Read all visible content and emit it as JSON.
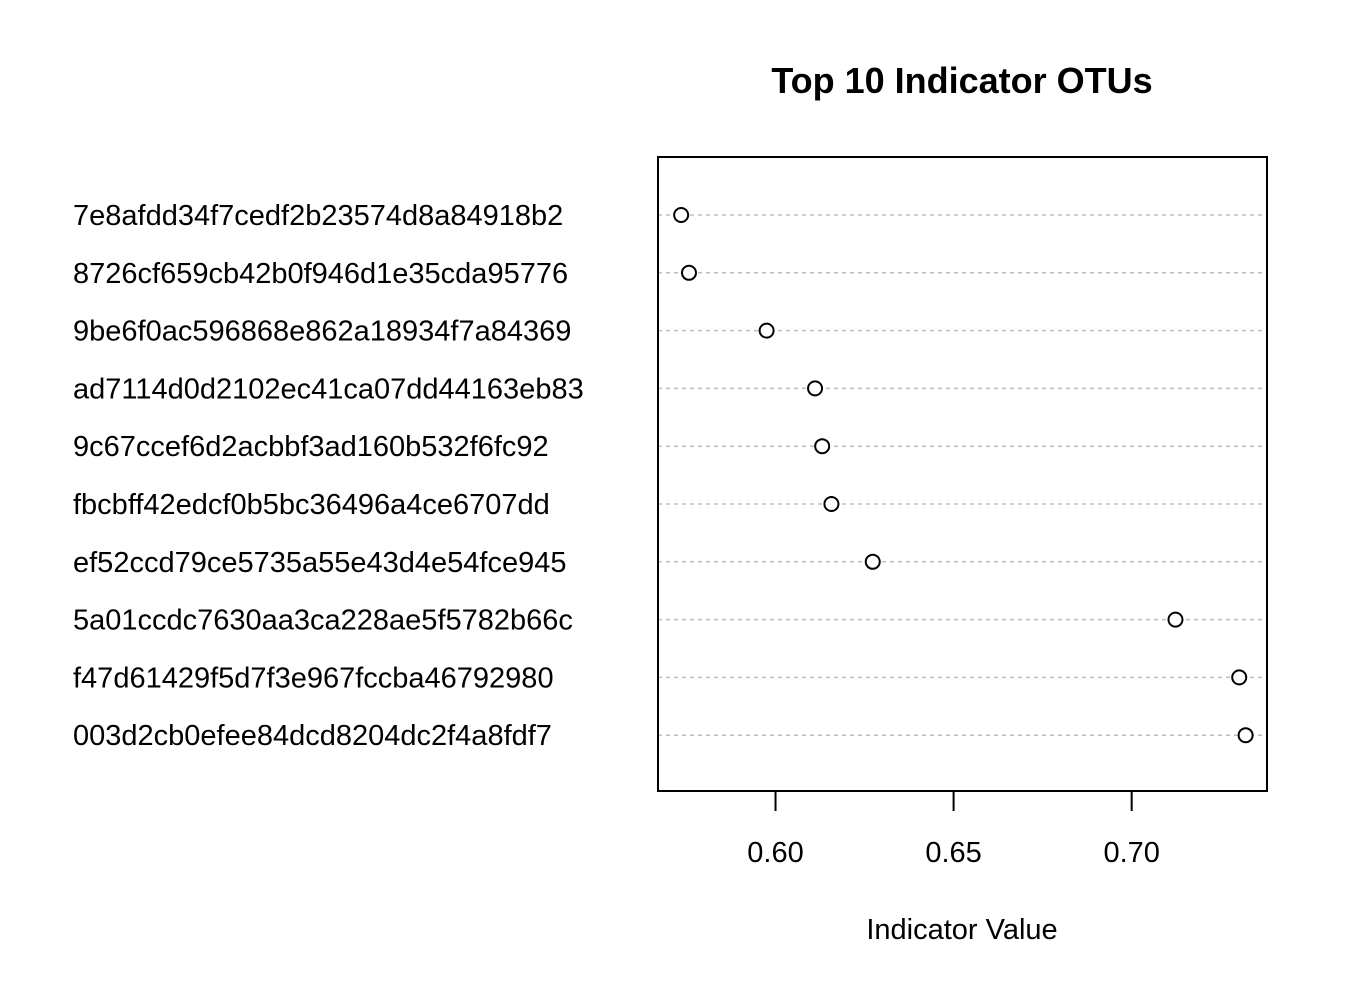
{
  "chart_data": {
    "type": "scatter",
    "title": "Top 10 Indicator OTUs",
    "xlabel": "Indicator Value",
    "ylabel": "",
    "xlim": [
      0.567,
      0.738
    ],
    "x_ticks": [
      0.6,
      0.65,
      0.7
    ],
    "x_tick_labels": [
      "0.60",
      "0.65",
      "0.70"
    ],
    "categories": [
      "7e8afdd34f7cedf2b23574d8a84918b2",
      "8726cf659cb42b0f946d1e35cda95776",
      "9be6f0ac596868e862a18934f7a84369",
      "ad7114d0d2102ec41ca07dd44163eb83",
      "9c67ccef6d2acbbf3ad160b532f6fc92",
      "fbcbff42edcf0b5bc36496a4ce6707dd",
      "ef52ccd79ce5735a55e43d4e54fce945",
      "5a01ccdc7630aa3ca228ae5f5782b66c",
      "f47d61429f5d7f3e967fccba46792980",
      "003d2cb0efee84dcd8204dc2f4a8fdf7"
    ],
    "values": [
      0.5735,
      0.5757,
      0.5975,
      0.6111,
      0.6131,
      0.6157,
      0.6273,
      0.7123,
      0.7302,
      0.732
    ],
    "grid": true,
    "legend": "none"
  }
}
